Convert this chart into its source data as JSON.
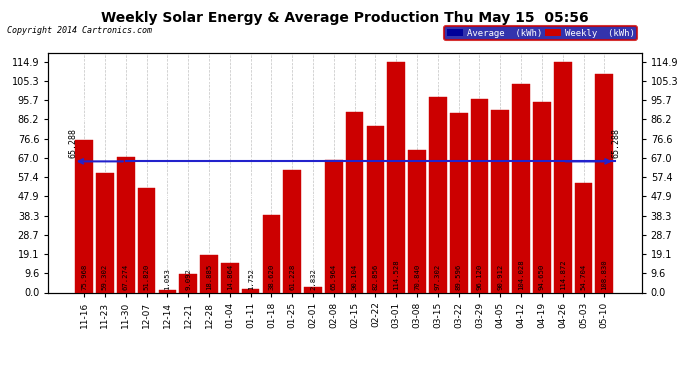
{
  "title": "Weekly Solar Energy & Average Production Thu May 15  05:56",
  "copyright": "Copyright 2014 Cartronics.com",
  "categories": [
    "11-16",
    "11-23",
    "11-30",
    "12-07",
    "12-14",
    "12-21",
    "12-28",
    "01-04",
    "01-11",
    "01-18",
    "01-25",
    "02-01",
    "02-08",
    "02-15",
    "02-22",
    "03-01",
    "03-08",
    "03-15",
    "03-22",
    "03-29",
    "04-05",
    "04-12",
    "04-19",
    "04-26",
    "05-03",
    "05-10"
  ],
  "values": [
    75.968,
    59.302,
    67.274,
    51.82,
    1.053,
    9.092,
    18.885,
    14.864,
    1.752,
    38.62,
    61.228,
    2.832,
    65.964,
    90.104,
    82.856,
    114.528,
    70.84,
    97.302,
    89.596,
    96.12,
    90.912,
    104.028,
    94.65,
    114.872,
    54.704,
    108.83
  ],
  "average": 65.288,
  "bar_color": "#cc0000",
  "average_line_color": "#2222cc",
  "yticks": [
    0.0,
    9.6,
    19.1,
    28.7,
    38.3,
    47.9,
    57.4,
    67.0,
    76.6,
    86.2,
    95.7,
    105.3,
    114.9
  ],
  "ymax": 119.5,
  "background_color": "#ffffff",
  "grid_color": "#999999",
  "legend_avg_bg": "#000099",
  "legend_weekly_bg": "#cc0000",
  "avg_label": "Average  (kWh)",
  "weekly_label": "Weekly  (kWh)"
}
